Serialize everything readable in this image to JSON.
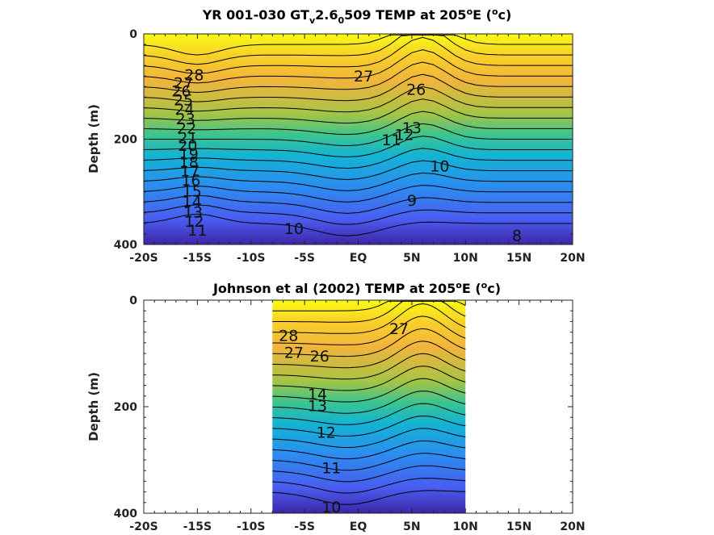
{
  "chart_data": [
    {
      "type": "heatmap",
      "panel": "top",
      "title_main": "YR 001-030 GT",
      "title_sub1": "v",
      "title_mid": "2.6",
      "title_sub2": "0",
      "title_tail": "509 TEMP at 205",
      "title_sup1": "o",
      "title_tail2": "E (",
      "title_sup2": "o",
      "title_end": "c)",
      "ylabel": "Depth (m)",
      "x_ticks": [
        "-20S",
        "-15S",
        "-10S",
        "-5S",
        "EQ",
        "5N",
        "10N",
        "15N",
        "20N"
      ],
      "x_tick_values": [
        -20,
        -15,
        -10,
        -5,
        0,
        5,
        10,
        15,
        20
      ],
      "y_ticks": [
        "0",
        "200",
        "400"
      ],
      "y_tick_values": [
        0,
        200,
        400
      ],
      "xlim": [
        -20,
        20
      ],
      "ylim": [
        0,
        400
      ],
      "y_reversed": true,
      "data_xlim": [
        -20,
        20
      ],
      "colormap": [
        "#3e26a8",
        "#4a5df0",
        "#2b8ef0",
        "#12b4d4",
        "#3bc490",
        "#a6c444",
        "#f1b43c",
        "#f9d128",
        "#f9fb14"
      ],
      "contour_labels": [
        {
          "text": "28",
          "x": -15.3,
          "y": 80
        },
        {
          "text": "27",
          "x": -16.3,
          "y": 95
        },
        {
          "text": "26",
          "x": -16.5,
          "y": 110
        },
        {
          "text": "25",
          "x": -16.3,
          "y": 127
        },
        {
          "text": "24",
          "x": -16.2,
          "y": 145
        },
        {
          "text": "23",
          "x": -16.1,
          "y": 163
        },
        {
          "text": "22",
          "x": -16.0,
          "y": 181
        },
        {
          "text": "21",
          "x": -15.9,
          "y": 199
        },
        {
          "text": "20",
          "x": -15.9,
          "y": 214
        },
        {
          "text": "19",
          "x": -15.8,
          "y": 230
        },
        {
          "text": "18",
          "x": -15.8,
          "y": 245
        },
        {
          "text": "17",
          "x": -15.7,
          "y": 262
        },
        {
          "text": "16",
          "x": -15.6,
          "y": 280
        },
        {
          "text": "15",
          "x": -15.5,
          "y": 300
        },
        {
          "text": "14",
          "x": -15.5,
          "y": 320
        },
        {
          "text": "13",
          "x": -15.4,
          "y": 340
        },
        {
          "text": "12",
          "x": -15.3,
          "y": 358
        },
        {
          "text": "11",
          "x": -15.0,
          "y": 375
        },
        {
          "text": "10",
          "x": -6.0,
          "y": 372
        },
        {
          "text": "27",
          "x": 0.5,
          "y": 82
        },
        {
          "text": "26",
          "x": 5.4,
          "y": 107
        },
        {
          "text": "11",
          "x": 3.1,
          "y": 203
        },
        {
          "text": "12",
          "x": 4.3,
          "y": 193
        },
        {
          "text": "13",
          "x": 5.0,
          "y": 180
        },
        {
          "text": "10",
          "x": 7.6,
          "y": 253
        },
        {
          "text": "9",
          "x": 5.0,
          "y": 318
        },
        {
          "text": "8",
          "x": 14.8,
          "y": 385
        }
      ],
      "contour_cluster": {
        "x": 6.3,
        "y": 150
      }
    },
    {
      "type": "heatmap",
      "panel": "bottom",
      "title_main": "Johnson et al (2002) TEMP at 205",
      "title_sup1": "o",
      "title_tail2": "E (",
      "title_sup2": "o",
      "title_end": "c)",
      "ylabel": "Depth (m)",
      "x_ticks": [
        "-20S",
        "-15S",
        "-10S",
        "-5S",
        "EQ",
        "5N",
        "10N",
        "15N",
        "20N"
      ],
      "x_tick_values": [
        -20,
        -15,
        -10,
        -5,
        0,
        5,
        10,
        15,
        20
      ],
      "y_ticks": [
        "0",
        "200",
        "400"
      ],
      "y_tick_values": [
        0,
        200,
        400
      ],
      "xlim": [
        -20,
        20
      ],
      "ylim": [
        0,
        400
      ],
      "y_reversed": true,
      "data_xlim": [
        -8,
        10
      ],
      "colormap": [
        "#3e26a8",
        "#4a5df0",
        "#2b8ef0",
        "#12b4d4",
        "#3bc490",
        "#a6c444",
        "#f1b43c",
        "#f9d128",
        "#f9fb14"
      ],
      "contour_labels": [
        {
          "text": "28",
          "x": -6.5,
          "y": 68
        },
        {
          "text": "27",
          "x": -6.0,
          "y": 100
        },
        {
          "text": "26",
          "x": -3.6,
          "y": 107
        },
        {
          "text": "27",
          "x": 3.8,
          "y": 55
        },
        {
          "text": "14",
          "x": -3.8,
          "y": 178
        },
        {
          "text": "13",
          "x": -3.8,
          "y": 200
        },
        {
          "text": "12",
          "x": -3.0,
          "y": 250
        },
        {
          "text": "11",
          "x": -2.5,
          "y": 317
        },
        {
          "text": "10",
          "x": -2.5,
          "y": 390
        }
      ],
      "contour_cluster": {
        "x": -3.6,
        "y": 155
      }
    }
  ]
}
